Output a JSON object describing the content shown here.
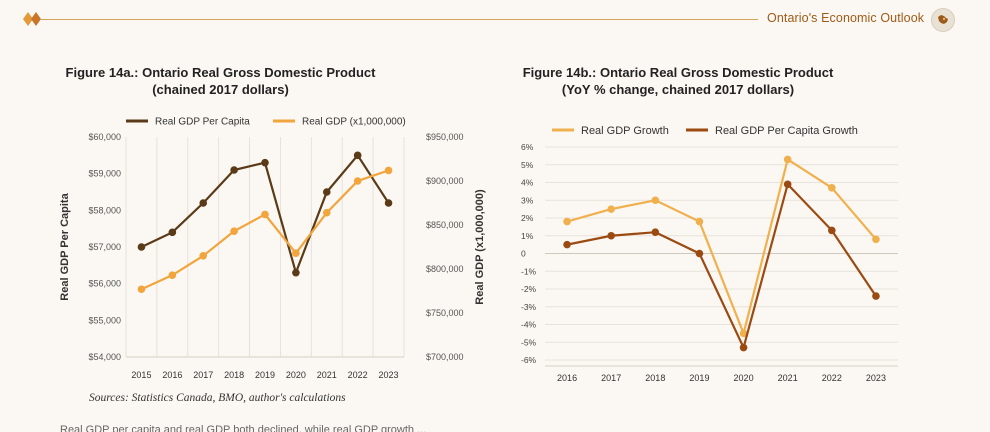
{
  "header": {
    "title": "Ontario's Economic Outlook",
    "accent_color": "#a05a16",
    "rule_color": "#d9a35a",
    "logo_icon": "ontario-map-icon"
  },
  "body_text_fragment": "Real GDP per capita and real GDP both declined, while real GDP growth ...",
  "source_note": "Sources: Statistics Canada, BMO, author's calculations",
  "chart_data": [
    {
      "id": "fig14a",
      "type": "line",
      "title_line1": "Figure 14a.: Ontario Real Gross Domestic Product",
      "title_line2": "(chained 2017 dollars)",
      "xlabel": "",
      "ylabel_left": "Real GDP Per Capita",
      "ylabel_right": "Real GDP (x1,000,000)",
      "categories": [
        "2015",
        "2016",
        "2017",
        "2018",
        "2019",
        "2020",
        "2021",
        "2022",
        "2023"
      ],
      "ylim_left": [
        54000,
        60000
      ],
      "ylim_right": [
        700000,
        950000
      ],
      "yticks_left": [
        "$60,000",
        "$59,000",
        "$58,000",
        "$57,000",
        "$56,000",
        "$55,000",
        "$54,000"
      ],
      "yticks_right": [
        "$950,000",
        "$900,000",
        "$850,000",
        "$800,000",
        "$750,000",
        "$700,000"
      ],
      "grid": "vertical",
      "series": [
        {
          "name": "Real GDP Per Capita",
          "axis": "left",
          "color": "#5a3a17",
          "values": [
            57000,
            57400,
            58200,
            59100,
            59300,
            56300,
            58500,
            59500,
            58200
          ]
        },
        {
          "name": "Real GDP (x1,000,000)",
          "axis": "right",
          "color": "#f1a53c",
          "values": [
            777000,
            793000,
            815000,
            843000,
            862000,
            818000,
            864000,
            900000,
            912000
          ]
        }
      ],
      "legend": [
        {
          "label": "Real GDP Per Capita",
          "color": "#5a3a17"
        },
        {
          "label": "Real GDP (x1,000,000)",
          "color": "#f1a53c"
        }
      ]
    },
    {
      "id": "fig14b",
      "type": "line",
      "title_line1": "Figure 14b.: Ontario Real Gross Domestic Product",
      "title_line2": "(YoY % change, chained 2017 dollars)",
      "xlabel": "",
      "ylabel": "",
      "categories": [
        "2016",
        "2017",
        "2018",
        "2019",
        "2020",
        "2021",
        "2022",
        "2023"
      ],
      "ylim": [
        -6,
        6
      ],
      "yticks": [
        "6%",
        "5%",
        "4%",
        "3%",
        "2%",
        "1%",
        "0",
        "-1%",
        "-2%",
        "-3%",
        "-4%",
        "-5%",
        "-6%"
      ],
      "grid": "horizontal",
      "series": [
        {
          "name": "Real GDP Growth",
          "color": "#f0b04d",
          "values": [
            1.8,
            2.5,
            3.0,
            1.8,
            -4.5,
            5.3,
            3.7,
            0.8
          ]
        },
        {
          "name": "Real GDP Per Capita Growth",
          "color": "#9b4a12",
          "values": [
            0.5,
            1.0,
            1.2,
            0.0,
            -5.3,
            3.9,
            1.3,
            -2.4
          ]
        }
      ],
      "legend": [
        {
          "label": "Real GDP Growth",
          "color": "#f0b04d"
        },
        {
          "label": "Real GDP Per Capita Growth",
          "color": "#9b4a12"
        }
      ]
    }
  ]
}
